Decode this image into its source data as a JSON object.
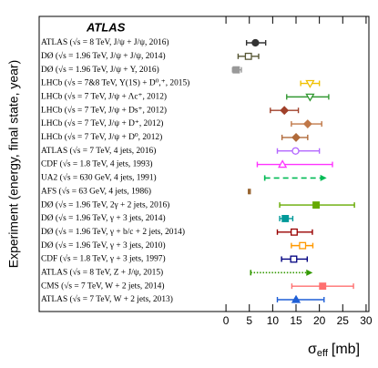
{
  "chart_data": {
    "type": "errorbar",
    "title": "ATLAS",
    "y_label": "Experiment (energy, final state, year)",
    "x_label": {
      "symbol": "σ",
      "subscript": "eff",
      "unit": "[mb]"
    },
    "xlim": [
      -40,
      30.6
    ],
    "xticks": [
      0,
      5,
      10,
      15,
      20,
      25,
      30
    ],
    "rows": [
      {
        "label": "ATLAS (√s = 8 TeV, J/ψ + J/ψ, 2016)",
        "value": 6.3,
        "err_minus": 1.9,
        "err_plus": 2.2,
        "color": "#333333",
        "marker": "circle"
      },
      {
        "label": "DØ (√s = 1.96 TeV, J/ψ + J/ψ, 2014)",
        "value": 4.8,
        "err_minus": 2.2,
        "err_plus": 2.2,
        "color": "#555533",
        "marker": "square-open"
      },
      {
        "label": "DØ (√s = 1.96 TeV, J/ψ + Υ, 2016)",
        "value": 2.2,
        "err_minus": 0.8,
        "err_plus": 1.1,
        "color": "#999999",
        "marker": "square"
      },
      {
        "label": "LHCb (√s = 7&8 TeV, Υ(1S) + D⁰,⁺, 2015)",
        "value": 18,
        "err_minus": 2,
        "err_plus": 2,
        "color": "#f0c000",
        "marker": "triangle-down-open"
      },
      {
        "label": "LHCb (√s = 7 TeV, J/ψ + Λc⁺, 2012)",
        "value": 18,
        "err_minus": 5,
        "err_plus": 4,
        "color": "#339933",
        "marker": "triangle-down-open"
      },
      {
        "label": "LHCb (√s = 7 TeV, J/ψ + Ds⁺, 2012)",
        "value": 12.5,
        "err_minus": 3,
        "err_plus": 3,
        "color": "#a0402a",
        "marker": "diamond"
      },
      {
        "label": "LHCb (√s = 7 TeV, J/ψ + D⁺, 2012)",
        "value": 17.5,
        "err_minus": 3.5,
        "err_plus": 3,
        "color": "#c07848",
        "marker": "diamond"
      },
      {
        "label": "LHCb (√s = 7 TeV, J/ψ + D⁰, 2012)",
        "value": 15,
        "err_minus": 3,
        "err_plus": 2.5,
        "color": "#b06a3a",
        "marker": "diamond"
      },
      {
        "label": "ATLAS (√s = 7 TeV, 4 jets, 2016)",
        "value": 14.9,
        "err_minus": 3.9,
        "err_plus": 5.1,
        "color": "#b366ff",
        "marker": "circle-open"
      },
      {
        "label": "CDF (√s = 1.8 TeV, 4 jets, 1993)",
        "value": 12.1,
        "err_minus": 5.4,
        "err_plus": 10.7,
        "color": "#ff33ff",
        "marker": "triangle-open"
      },
      {
        "label": "UA2 (√s = 630 GeV, 4 jets, 1991)",
        "lower_limit": 8.3,
        "color": "#00bb55",
        "style": "dashed"
      },
      {
        "label": "AFS (√s = 63 GeV, 4 jets, 1986)",
        "value": 5,
        "err_minus": 0.2,
        "err_plus": 0.2,
        "color": "#996633",
        "marker": "none"
      },
      {
        "label": "DØ (√s = 1.96 TeV, 2γ + 2 jets, 2016)",
        "value": 19.3,
        "err_minus": 7.8,
        "err_plus": 8.2,
        "color": "#66aa00",
        "marker": "square"
      },
      {
        "label": "DØ (√s = 1.96 TeV, γ + 3 jets, 2014)",
        "value": 12.7,
        "err_minus": 1.2,
        "err_plus": 1.6,
        "color": "#009999",
        "marker": "square"
      },
      {
        "label": "DØ (√s = 1.96 TeV, γ + b/c + 2 jets, 2014)",
        "value": 14.6,
        "err_minus": 3.6,
        "err_plus": 3.9,
        "color": "#990000",
        "marker": "square-open"
      },
      {
        "label": "DØ (√s = 1.96 TeV, γ + 3 jets, 2010)",
        "value": 16.4,
        "err_minus": 2.4,
        "err_plus": 2.2,
        "color": "#ff9900",
        "marker": "square-open"
      },
      {
        "label": "CDF (√s = 1.8 TeV, γ + 3 jets, 1997)",
        "value": 14.5,
        "err_minus": 2.6,
        "err_plus": 2.9,
        "color": "#000080",
        "marker": "square-open"
      },
      {
        "label": "ATLAS (√s = 8 TeV, Z + J/ψ, 2015)",
        "lower_limit": 5.3,
        "color": "#339900",
        "style": "dotted"
      },
      {
        "label": "CMS (√s = 7 TeV, W + 2 jets, 2014)",
        "value": 20.7,
        "err_minus": 6.6,
        "err_plus": 6.6,
        "color": "#ff7070",
        "marker": "square"
      },
      {
        "label": "ATLAS (√s = 7 TeV, W + 2 jets, 2013)",
        "value": 15,
        "err_minus": 4,
        "err_plus": 6,
        "color": "#1f5fd6",
        "marker": "triangle"
      }
    ]
  }
}
